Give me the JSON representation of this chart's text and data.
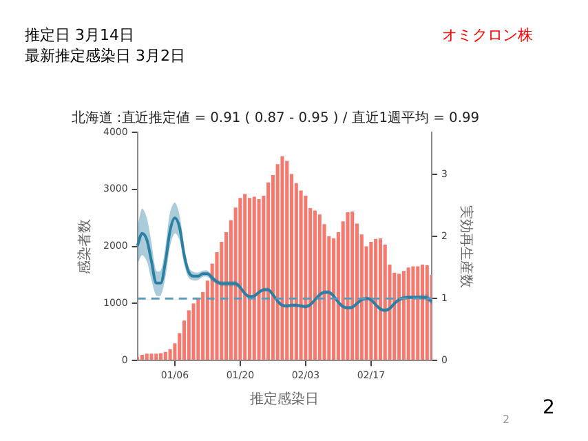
{
  "chart_data": {
    "type": "bar",
    "title": "北海道 :直近推定値 = 0.91 ( 0.87 - 0.95 ) / 直近1週平均 = 0.99",
    "xlabel": "推定感染日",
    "ylabel": "感染者数",
    "y2label": "実効再生産数",
    "annotations": [
      "推定日  3月14日",
      "最新推定感染日  3月2日",
      "オミクロン株",
      "2",
      "2"
    ],
    "categories": [
      null,
      null,
      null,
      null,
      null,
      null,
      null,
      null,
      "01/06",
      null,
      null,
      null,
      null,
      null,
      null,
      null,
      null,
      null,
      null,
      null,
      null,
      null,
      "01/20",
      null,
      null,
      null,
      null,
      null,
      null,
      null,
      null,
      null,
      null,
      null,
      null,
      null,
      "02/03",
      null,
      null,
      null,
      null,
      null,
      null,
      null,
      null,
      null,
      null,
      null,
      null,
      null,
      "02/17",
      null,
      null,
      null,
      null,
      null,
      null,
      null,
      null,
      null,
      null,
      null,
      null,
      null
    ],
    "series": [
      {
        "color": "#f47a70",
        "values": [
          60,
          100,
          120,
          120,
          120,
          130,
          150,
          200,
          300,
          480,
          700,
          880,
          1000,
          1100,
          1200,
          1400,
          1700,
          1900,
          2080,
          2250,
          2460,
          2680,
          2850,
          2920,
          2850,
          2870,
          2830,
          2890,
          3120,
          3250,
          3440,
          3580,
          3500,
          3270,
          3110,
          2980,
          2890,
          2670,
          2630,
          2560,
          2390,
          2180,
          2140,
          2250,
          2440,
          2600,
          2610,
          2400,
          2210,
          2000,
          2080,
          2130,
          2140,
          2030,
          1680,
          1540,
          1520,
          1570,
          1630,
          1650,
          1650,
          1680,
          1670,
          1500
        ]
      },
      {
        "type": "line",
        "axis": "y2",
        "color": "#2b7fa3",
        "values": [
          1.85,
          2.05,
          1.95,
          1.6,
          1.25,
          1.25,
          1.6,
          2.1,
          2.3,
          2.15,
          1.7,
          1.42,
          1.36,
          1.36,
          1.4,
          1.4,
          1.33,
          1.27,
          1.24,
          1.24,
          1.24,
          1.24,
          1.18,
          1.08,
          1.03,
          1.04,
          1.1,
          1.14,
          1.14,
          1.06,
          0.96,
          0.89,
          0.88,
          0.89,
          0.89,
          0.88,
          0.87,
          0.9,
          0.98,
          1.06,
          1.1,
          1.1,
          1.04,
          0.94,
          0.87,
          0.85,
          0.86,
          0.92,
          0.98,
          1.0,
          0.98,
          0.9,
          0.83,
          0.81,
          0.84,
          0.92,
          0.98,
          1.01,
          1.02,
          1.02,
          1.02,
          1.02,
          1.01,
          0.95
        ],
        "lower": [
          1.55,
          1.7,
          1.6,
          1.3,
          1.05,
          1.05,
          1.35,
          1.85,
          2.05,
          1.95,
          1.55,
          1.33,
          1.29,
          1.3,
          1.35,
          1.35,
          1.28,
          1.23,
          1.2,
          1.2,
          1.2,
          1.2,
          1.14,
          1.05,
          1.0,
          1.01,
          1.07,
          1.11,
          1.11,
          1.03,
          0.93,
          0.86,
          0.85,
          0.86,
          0.86,
          0.85,
          0.84,
          0.87,
          0.95,
          1.03,
          1.07,
          1.07,
          1.01,
          0.91,
          0.84,
          0.82,
          0.83,
          0.89,
          0.95,
          0.97,
          0.95,
          0.87,
          0.8,
          0.78,
          0.81,
          0.89,
          0.95,
          0.98,
          0.99,
          0.99,
          0.99,
          0.98,
          0.96,
          0.9
        ],
        "upper": [
          2.15,
          2.45,
          2.3,
          1.9,
          1.45,
          1.45,
          1.85,
          2.4,
          2.55,
          2.35,
          1.85,
          1.5,
          1.43,
          1.42,
          1.45,
          1.45,
          1.38,
          1.31,
          1.28,
          1.28,
          1.28,
          1.28,
          1.22,
          1.11,
          1.06,
          1.07,
          1.13,
          1.17,
          1.17,
          1.09,
          0.99,
          0.92,
          0.91,
          0.92,
          0.92,
          0.91,
          0.9,
          0.93,
          1.01,
          1.09,
          1.13,
          1.13,
          1.07,
          0.97,
          0.9,
          0.88,
          0.89,
          0.95,
          1.01,
          1.03,
          1.01,
          0.93,
          0.86,
          0.84,
          0.87,
          0.95,
          1.01,
          1.04,
          1.05,
          1.05,
          1.05,
          1.06,
          1.06,
          1.0
        ]
      }
    ],
    "ylim": [
      0,
      4000
    ],
    "yticks": [
      0,
      1000,
      2000,
      3000,
      4000
    ],
    "y2lim": [
      0,
      3.68
    ],
    "y2ticks": [
      0,
      1,
      2,
      3
    ],
    "ref_lines": [
      {
        "axis": "y2",
        "value": 1,
        "color": "#5b9ab8",
        "line_style": "dashed"
      }
    ],
    "grid": false,
    "legend": false
  }
}
